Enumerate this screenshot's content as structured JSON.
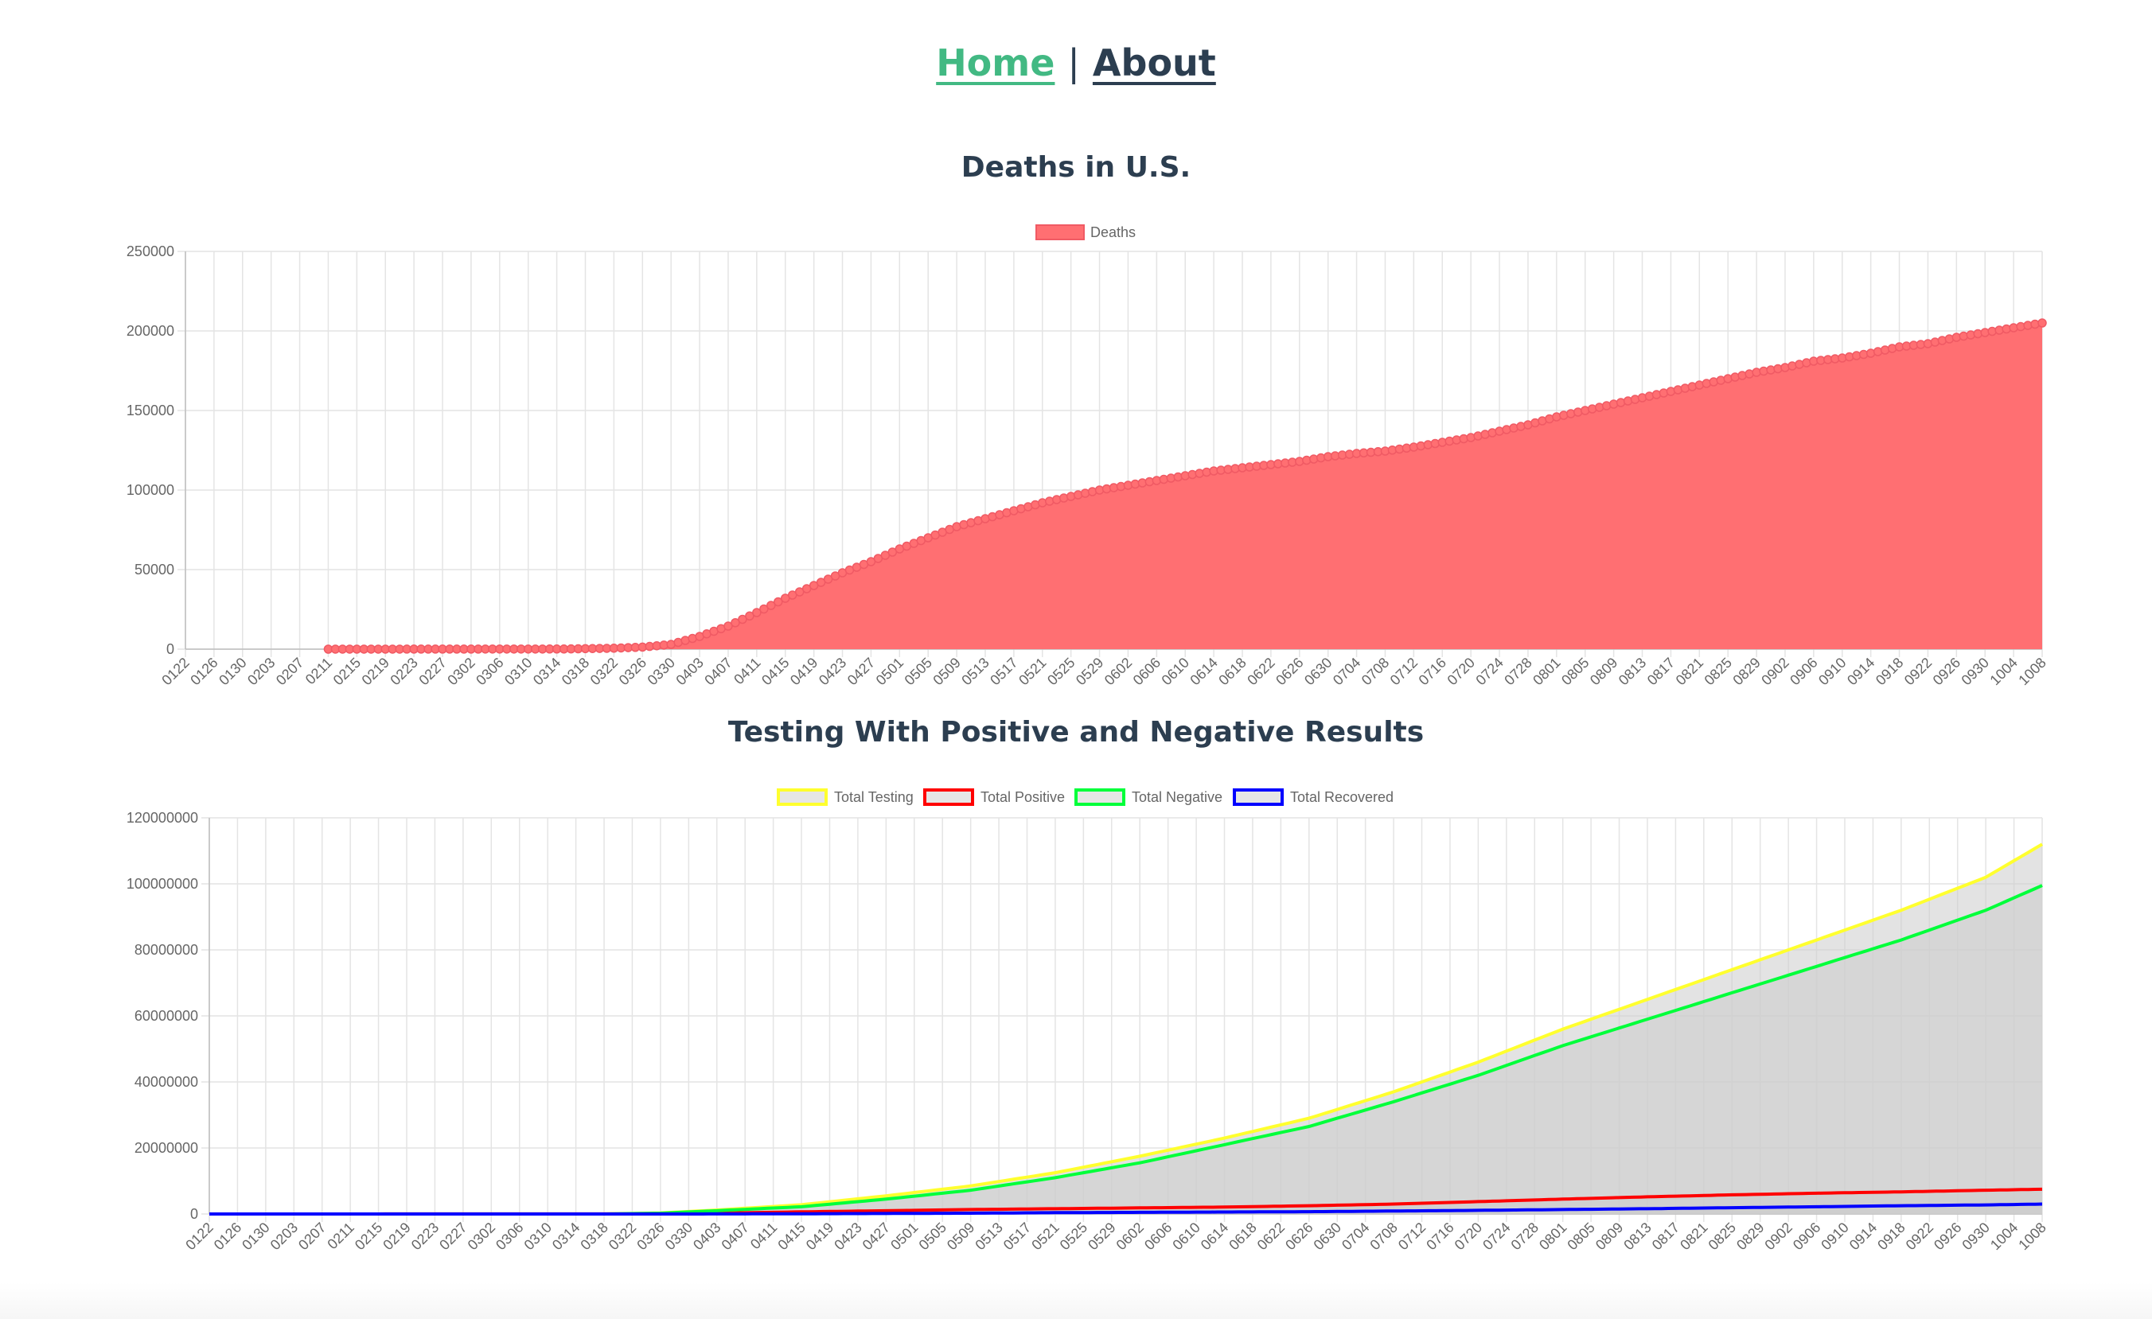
{
  "nav": {
    "home": "Home",
    "separator": "|",
    "about": "About"
  },
  "colors": {
    "deaths_fill": "#ff6f72",
    "deaths_line": "#f05a64",
    "testing": "#ffff2e",
    "positive": "#ff0000",
    "negative": "#00ff3a",
    "recovered": "#0000ff",
    "testing_fill": "#cccccc",
    "grid": "#e4e4e4"
  },
  "chart_data": [
    {
      "type": "area",
      "title": "Deaths in U.S.",
      "legend_position": "top",
      "grid": true,
      "ylim": [
        0,
        250000
      ],
      "y_ticks": [
        "250000",
        "200000",
        "150000",
        "100000",
        "50000",
        "0"
      ],
      "x_ticks": [
        "0122",
        "0126",
        "0130",
        "0203",
        "0207",
        "0211",
        "0215",
        "0219",
        "0223",
        "0227",
        "0302",
        "0306",
        "0310",
        "0314",
        "0318",
        "0322",
        "0326",
        "0330",
        "0403",
        "0407",
        "0411",
        "0415",
        "0419",
        "0423",
        "0427",
        "0501",
        "0505",
        "0509",
        "0513",
        "0517",
        "0521",
        "0525",
        "0529",
        "0602",
        "0606",
        "0610",
        "0614",
        "0618",
        "0622",
        "0626",
        "0630",
        "0704",
        "0708",
        "0712",
        "0716",
        "0720",
        "0724",
        "0728",
        "0801",
        "0805",
        "0809",
        "0813",
        "0817",
        "0821",
        "0825",
        "0829",
        "0902",
        "0906",
        "0910",
        "0914",
        "0918",
        "0922",
        "0926",
        "0930",
        "1004",
        "1008"
      ],
      "series": [
        {
          "name": "Deaths",
          "data_start": "0211",
          "points": [
            [
              "0211",
              0
            ],
            [
              "0315",
              100
            ],
            [
              "0322",
              600
            ],
            [
              "0326",
              1300
            ],
            [
              "0330",
              3000
            ],
            [
              "0403",
              8000
            ],
            [
              "0407",
              14500
            ],
            [
              "0411",
              23000
            ],
            [
              "0415",
              32000
            ],
            [
              "0419",
              40000
            ],
            [
              "0423",
              48000
            ],
            [
              "0427",
              55000
            ],
            [
              "0501",
              63000
            ],
            [
              "0505",
              70000
            ],
            [
              "0509",
              77000
            ],
            [
              "0513",
              82000
            ],
            [
              "0517",
              87000
            ],
            [
              "0521",
              92000
            ],
            [
              "0525",
              96000
            ],
            [
              "0529",
              100000
            ],
            [
              "0602",
              103000
            ],
            [
              "0606",
              106000
            ],
            [
              "0610",
              109000
            ],
            [
              "0614",
              112000
            ],
            [
              "0618",
              114000
            ],
            [
              "0622",
              116000
            ],
            [
              "0626",
              118000
            ],
            [
              "0630",
              121000
            ],
            [
              "0704",
              123000
            ],
            [
              "0708",
              124500
            ],
            [
              "0712",
              127000
            ],
            [
              "0716",
              130000
            ],
            [
              "0720",
              133000
            ],
            [
              "0724",
              137000
            ],
            [
              "0728",
              141000
            ],
            [
              "0801",
              146000
            ],
            [
              "0805",
              150000
            ],
            [
              "0809",
              154000
            ],
            [
              "0813",
              158000
            ],
            [
              "0817",
              162000
            ],
            [
              "0821",
              166000
            ],
            [
              "0825",
              170000
            ],
            [
              "0829",
              174000
            ],
            [
              "0902",
              177000
            ],
            [
              "0906",
              181000
            ],
            [
              "0910",
              183000
            ],
            [
              "0914",
              186000
            ],
            [
              "0918",
              190000
            ],
            [
              "0922",
              192000
            ],
            [
              "0926",
              196000
            ],
            [
              "0930",
              199000
            ],
            [
              "1004",
              202000
            ],
            [
              "1008",
              205000
            ]
          ]
        }
      ]
    },
    {
      "type": "area",
      "title": "Testing With Positive and Negative Results",
      "legend_position": "top",
      "grid": true,
      "ylim": [
        0,
        120000000
      ],
      "y_ticks": [
        "120000000",
        "100000000",
        "80000000",
        "60000000",
        "40000000",
        "20000000",
        "0"
      ],
      "x_ticks": [
        "0122",
        "0126",
        "0130",
        "0203",
        "0207",
        "0211",
        "0215",
        "0219",
        "0223",
        "0227",
        "0302",
        "0306",
        "0310",
        "0314",
        "0318",
        "0322",
        "0326",
        "0330",
        "0403",
        "0407",
        "0411",
        "0415",
        "0419",
        "0423",
        "0427",
        "0501",
        "0505",
        "0509",
        "0513",
        "0517",
        "0521",
        "0525",
        "0529",
        "0602",
        "0606",
        "0610",
        "0614",
        "0618",
        "0622",
        "0626",
        "0630",
        "0704",
        "0708",
        "0712",
        "0716",
        "0720",
        "0724",
        "0728",
        "0801",
        "0805",
        "0809",
        "0813",
        "0817",
        "0821",
        "0825",
        "0829",
        "0902",
        "0906",
        "0910",
        "0914",
        "0918",
        "0922",
        "0926",
        "0930",
        "1004",
        "1008"
      ],
      "series": [
        {
          "name": "Total Testing",
          "points": [
            [
              "0122",
              0
            ],
            [
              "0318",
              0
            ],
            [
              "0326",
              300000
            ],
            [
              "0403",
              1200000
            ],
            [
              "0415",
              2800000
            ],
            [
              "0427",
              5500000
            ],
            [
              "0509",
              8500000
            ],
            [
              "0521",
              12500000
            ],
            [
              "0602",
              17500000
            ],
            [
              "0614",
              23000000
            ],
            [
              "0626",
              29000000
            ],
            [
              "0708",
              37000000
            ],
            [
              "0720",
              46000000
            ],
            [
              "0801",
              56000000
            ],
            [
              "0813",
              65000000
            ],
            [
              "0825",
              74000000
            ],
            [
              "0906",
              83000000
            ],
            [
              "0918",
              92000000
            ],
            [
              "0930",
              102000000
            ],
            [
              "1008",
              112000000
            ]
          ]
        },
        {
          "name": "Total Positive",
          "points": [
            [
              "0122",
              0
            ],
            [
              "0322",
              30000
            ],
            [
              "0403",
              250000
            ],
            [
              "0415",
              650000
            ],
            [
              "0427",
              1000000
            ],
            [
              "0509",
              1350000
            ],
            [
              "0521",
              1600000
            ],
            [
              "0602",
              1850000
            ],
            [
              "0614",
              2100000
            ],
            [
              "0626",
              2500000
            ],
            [
              "0708",
              3000000
            ],
            [
              "0720",
              3750000
            ],
            [
              "0801",
              4500000
            ],
            [
              "0813",
              5200000
            ],
            [
              "0825",
              5800000
            ],
            [
              "0906",
              6300000
            ],
            [
              "0918",
              6700000
            ],
            [
              "0930",
              7200000
            ],
            [
              "1008",
              7500000
            ]
          ]
        },
        {
          "name": "Total Negative",
          "points": [
            [
              "0122",
              0
            ],
            [
              "0318",
              0
            ],
            [
              "0326",
              250000
            ],
            [
              "0403",
              1000000
            ],
            [
              "0415",
              2200000
            ],
            [
              "0427",
              4500000
            ],
            [
              "0509",
              7200000
            ],
            [
              "0521",
              11000000
            ],
            [
              "0602",
              15500000
            ],
            [
              "0614",
              21000000
            ],
            [
              "0626",
              26500000
            ],
            [
              "0708",
              34000000
            ],
            [
              "0720",
              42000000
            ],
            [
              "0801",
              51000000
            ],
            [
              "0813",
              59000000
            ],
            [
              "0825",
              67000000
            ],
            [
              "0906",
              75000000
            ],
            [
              "0918",
              83000000
            ],
            [
              "0930",
              92000000
            ],
            [
              "1008",
              99500000
            ]
          ]
        },
        {
          "name": "Total Recovered",
          "points": [
            [
              "0122",
              0
            ],
            [
              "0330",
              0
            ],
            [
              "0415",
              70000
            ],
            [
              "0427",
              150000
            ],
            [
              "0509",
              250000
            ],
            [
              "0521",
              400000
            ],
            [
              "0602",
              500000
            ],
            [
              "0614",
              600000
            ],
            [
              "0626",
              700000
            ],
            [
              "0708",
              900000
            ],
            [
              "0720",
              1100000
            ],
            [
              "0801",
              1350000
            ],
            [
              "0813",
              1600000
            ],
            [
              "0825",
              1900000
            ],
            [
              "0906",
              2200000
            ],
            [
              "0918",
              2500000
            ],
            [
              "0930",
              2750000
            ],
            [
              "1008",
              3000000
            ]
          ]
        }
      ]
    }
  ]
}
